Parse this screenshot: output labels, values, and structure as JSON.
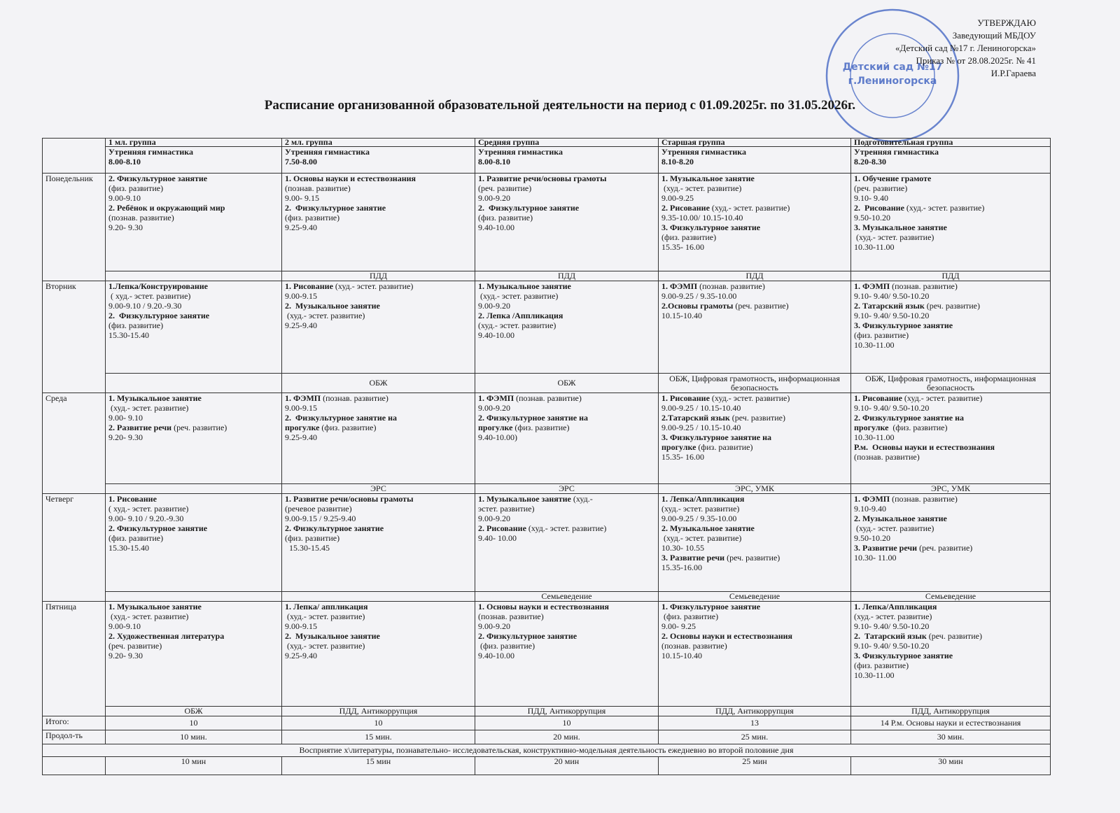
{
  "approval": {
    "lines": [
      "УТВЕРЖДАЮ",
      "Заведующий МБДОУ",
      "«Детский сад №17 г. Лениногорска»",
      "Приказ №  от 28.08.2025г. № 41",
      "И.Р.Гараева"
    ]
  },
  "stamp": [
    "Детский сад №17",
    "г.Лениногорска"
  ],
  "title": "Расписание организованной образовательной деятельности на период с 01.09.2025г. по 31.05.2026г.",
  "groups": [
    {
      "name": "1 мл. группа",
      "gym": "Утренняя гимнастика",
      "time": "8.00-8.10"
    },
    {
      "name": "2 мл. группа",
      "gym": "Утренняя гимнастика",
      "time": "7.50-8.00"
    },
    {
      "name": "Средняя группа",
      "gym": "Утренняя гимнастика",
      "time": "8.00-8.10"
    },
    {
      "name": "Старшая группа",
      "gym": "Утренняя гимнастика",
      "time": "8.10-8.20"
    },
    {
      "name": "Подготовительная группа",
      "gym": "Утренняя гимнастика",
      "time": "8.20-8.30"
    }
  ],
  "days": [
    {
      "name": "Понедельник",
      "cells": [
        [
          {
            "b": "2. Физкультурное занятие"
          },
          "(физ. развитие)",
          "9.00-9.10",
          {
            "b": "2. Ребёнок и окружающий мир"
          },
          "(познав. развитие)",
          "9.20- 9.30"
        ],
        [
          {
            "b": "1. Основы науки и естествознания"
          },
          "(познав. развитие)",
          "9.00- 9.15",
          {
            "b": "2.  Физкультурное занятие"
          },
          "(физ. развитие)",
          "9.25-9.40"
        ],
        [
          {
            "b": "1. Развитие речи/основы грамоты"
          },
          "(реч. развитие)",
          "9.00-9.20",
          {
            "b": "2.  Физкультурное занятие"
          },
          "(физ. развитие)",
          "9.40-10.00"
        ],
        [
          {
            "b": "1. Музыкальное занятие"
          },
          " (худ.- эстет. развитие)",
          "9.00-9.25",
          {
            "b": "2. Рисование",
            "t": " (худ.- эстет. развитие)"
          },
          "9.35-10.00/ 10.15-10.40",
          {
            "b": "3. Физкультурное занятие"
          },
          "(физ. развитие)",
          "15.35- 16.00"
        ],
        [
          {
            "b": "1. Обучение грамоте"
          },
          "(реч. развитие)",
          "9.10- 9.40",
          {
            "b": "2.  Рисование",
            "t": " (худ.- эстет. развитие)"
          },
          "9.50-10.20",
          {
            "b": "3. Музыкальное занятие"
          },
          " (худ.- эстет. развитие)",
          "10.30-11.00"
        ]
      ],
      "notes": [
        null,
        "ПДД",
        "ПДД",
        "ПДД",
        "ПДД"
      ]
    },
    {
      "name": "Вторник",
      "cells": [
        [
          {
            "b": "1.Лепка/Конструирование"
          },
          " ( худ.- эстет. развитие)",
          "9.00-9.10 / 9.20.-9.30",
          {
            "b": "2.  Физкультурное занятие"
          },
          "(физ. развитие)",
          "15.30-15.40"
        ],
        [
          {
            "b": "1. Рисование",
            "t": " (худ.- эстет. развитие)"
          },
          "9.00-9.15",
          {
            "b": "2.  Музыкальное занятие"
          },
          " (худ.- эстет. развитие)",
          "9.25-9.40"
        ],
        [
          {
            "b": "1. Музыкальное занятие"
          },
          " (худ.- эстет. развитие)",
          "9.00-9.20",
          {
            "b": "2. Лепка /Аппликация"
          },
          "(худ.- эстет. развитие)",
          "9.40-10.00"
        ],
        [
          {
            "b": "1. ФЭМП",
            "t": " (познав. развитие)"
          },
          "9.00-9.25 / 9.35-10.00",
          {
            "b": "2.Основы грамоты",
            "t": " (реч. развитие)"
          },
          "10.15-10.40"
        ],
        [
          {
            "b": "1. ФЭМП",
            "t": " (познав. развитие)"
          },
          "9.10- 9.40/ 9.50-10.20",
          {
            "b": "2. Татарский язык",
            "t": " (реч. развитие)"
          },
          "9.10- 9.40/ 9.50-10.20",
          {
            "b": "3. Физкультурное занятие"
          },
          "(физ. развитие)",
          "10.30-11.00"
        ]
      ],
      "notes": [
        null,
        "ОБЖ",
        "ОБЖ",
        "ОБЖ, Цифровая грамотность, информационная безопасность",
        "ОБЖ, Цифровая грамотность, информационная безопасность"
      ]
    },
    {
      "name": "Среда",
      "cells": [
        [
          {
            "b": "1. Музыкальное занятие"
          },
          " (худ.- эстет. развитие)",
          "9.00- 9.10",
          {
            "b": "2. Развитие речи",
            "t": " (реч. развитие)"
          },
          "9.20- 9.30"
        ],
        [
          {
            "b": "1. ФЭМП",
            "t": " (познав. развитие)"
          },
          "9.00-9.15",
          {
            "b": "2.  Физкультурное занятие на"
          },
          {
            "b": "прогулке",
            "t": " (физ. развитие)"
          },
          "9.25-9.40"
        ],
        [
          {
            "b": "1. ФЭМП",
            "t": " (познав. развитие)"
          },
          "9.00-9.20",
          {
            "b": "2. Физкультурное занятие на"
          },
          {
            "b": "прогулке",
            "t": " (физ. развитие)"
          },
          "9.40-10.00)"
        ],
        [
          {
            "b": "1. Рисование",
            "t": " (худ.- эстет. развитие)"
          },
          "9.00-9.25 / 10.15-10.40",
          {
            "b": "2.Татарский язык",
            "t": " (реч. развитие)"
          },
          "9.00-9.25 / 10.15-10.40",
          {
            "b": "3. Физкультурное занятие на"
          },
          {
            "b": "прогулке",
            "t": " (физ. развитие)"
          },
          "15.35- 16.00"
        ],
        [
          {
            "b": "1. Рисование",
            "t": " (худ.- эстет. развитие)"
          },
          "9.10- 9.40/ 9.50-10.20",
          {
            "b": "2. Физкультурное занятие на"
          },
          {
            "b": "прогулке",
            "t": "  (физ. развитие)"
          },
          "10.30-11.00",
          {
            "b": "Р.м.  Основы науки и естествознания"
          },
          "(познав. развитие)"
        ]
      ],
      "notes": [
        null,
        "ЭРС",
        "ЭРС",
        "ЭРС, УМК",
        "ЭРС, УМК"
      ]
    },
    {
      "name": "Четверг",
      "cells": [
        [
          {
            "b": "1. Рисование"
          },
          "( худ.- эстет. развитие)",
          "9.00- 9.10 / 9.20.-9.30",
          {
            "b": "2. Физкультурное занятие"
          },
          "(физ. развитие)",
          "15.30-15.40"
        ],
        [
          {
            "b": "1. Развитие речи/основы грамоты"
          },
          "(речевое развитие)",
          "9.00-9.15 / 9.25-9.40",
          {
            "b": "2. Физкультурное занятие"
          },
          "(физ. развитие)",
          "  15.30-15.45"
        ],
        [
          {
            "b": "1. Музыкальное занятие",
            "t": " (худ.-"
          },
          "эстет. развитие)",
          "9.00-9.20",
          {
            "b": "2. Рисование",
            "t": " (худ.- эстет. развитие)"
          },
          "9.40- 10.00"
        ],
        [
          {
            "b": "1. Лепка/Аппликация"
          },
          "(худ.- эстет. развитие)",
          "9.00-9.25 / 9.35-10.00",
          {
            "b": "2. Музыкальное занятие"
          },
          " (худ.- эстет. развитие)",
          "10.30- 10.55",
          {
            "b": "3. Развитие речи",
            "t": " (реч. развитие)"
          },
          "15.35-16.00"
        ],
        [
          {
            "b": "1. ФЭМП",
            "t": " (познав. развитие)"
          },
          "9.10-9.40",
          {
            "b": "2. Музыкальное занятие"
          },
          " (худ.- эстет. развитие)",
          "9.50-10.20",
          {
            "b": "3. Развитие речи",
            "t": " (реч. развитие)"
          },
          "10.30- 11.00"
        ]
      ],
      "notes": [
        null,
        null,
        "Семьеведение",
        "Семьеведение",
        "Семьеведение"
      ]
    },
    {
      "name": "Пятница",
      "cells": [
        [
          {
            "b": "1. Музыкальное занятие"
          },
          " (худ.- эстет. развитие)",
          "9.00-9.10",
          {
            "b": "2. Художественная литература"
          },
          "(реч. развитие)",
          "9.20- 9.30"
        ],
        [
          {
            "b": "1. Лепка/ аппликация"
          },
          " (худ.- эстет. развитие)",
          "9.00-9.15",
          {
            "b": "2.  Музыкальное занятие"
          },
          " (худ.- эстет. развитие)",
          "9.25-9.40"
        ],
        [
          {
            "b": "1. Основы науки и естествознания"
          },
          "(познав. развитие)",
          "9.00-9.20",
          {
            "b": "2. Физкультурное занятие"
          },
          " (физ. развитие)",
          "9.40-10.00"
        ],
        [
          {
            "b": "1. Физкультурное занятие"
          },
          " (физ. развитие)",
          "9.00- 9.25",
          {
            "b": "2. Основы науки и естествознания"
          },
          "(познав. развитие)",
          "10.15-10.40"
        ],
        [
          {
            "b": "1. Лепка/Аппликация"
          },
          "(худ.- эстет. развитие)",
          "9.10- 9.40/ 9.50-10.20",
          {
            "b": "2.  Татарский язык",
            "t": " (реч. развитие)"
          },
          "9.10- 9.40/ 9.50-10.20",
          {
            "b": "3. Физкультурное занятие"
          },
          "(физ. развитие)",
          "10.30-11.00"
        ]
      ],
      "notes": [
        "ОБЖ",
        "ПДД, Антикоррупция",
        "ПДД, Антикоррупция",
        "ПДД, Антикоррупция",
        "ПДД, Антикоррупция"
      ]
    }
  ],
  "summary": [
    {
      "label": "Итого:",
      "values": [
        "10",
        "10",
        "10",
        "13",
        "14  Р.м. Основы науки и естествознания"
      ]
    },
    {
      "label": "Продол-ть",
      "values": [
        "10 мин.",
        "15 мин.",
        "20 мин.",
        "25 мин.",
        "30  мин."
      ]
    }
  ],
  "footer": {
    "text": "Восприятие  х\\литературы, познавательно- исследовательская, конструктивно-модельная деятельность  ежедневно во второй половине дня",
    "values": [
      "10 мин",
      "15 мин",
      "20 мин",
      "25 мин",
      "30 мин"
    ]
  }
}
